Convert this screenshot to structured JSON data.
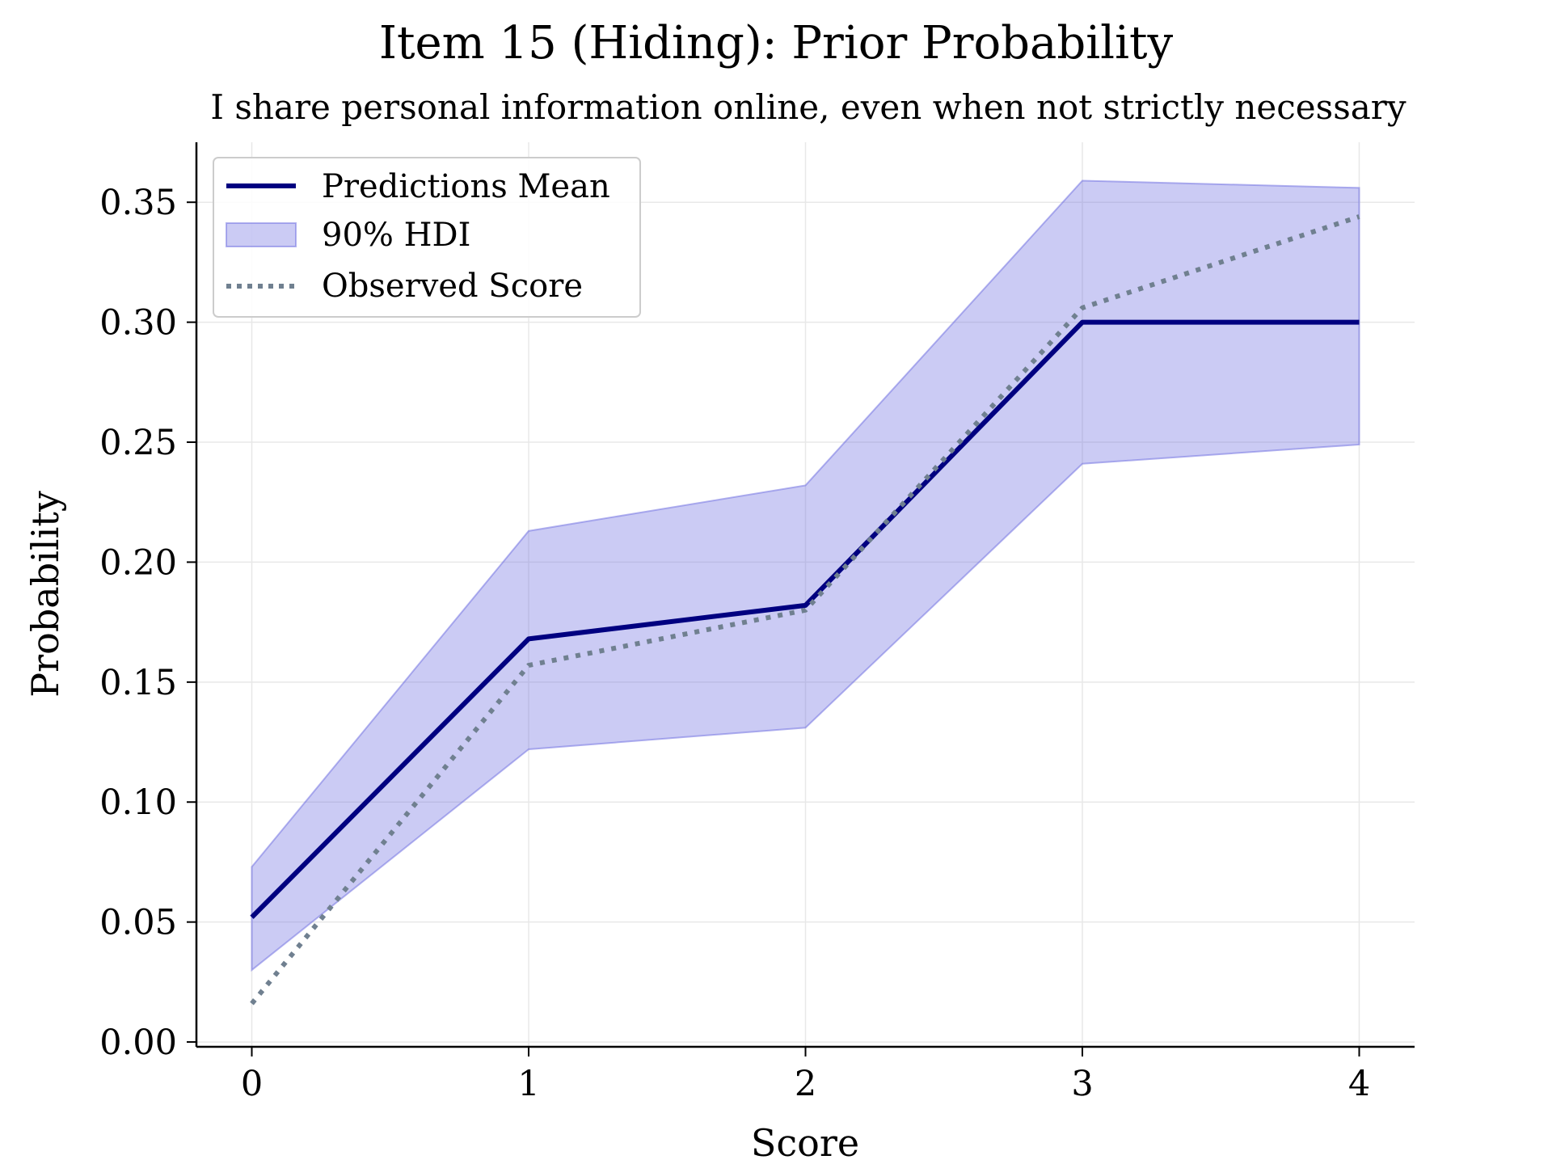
{
  "chart_data": {
    "type": "line",
    "title": "Item 15 (Hiding): Prior Probability",
    "subtitle": "I share personal information online, even when not strictly necessary",
    "xlabel": "Score",
    "ylabel": "Probability",
    "x": [
      0,
      1,
      2,
      3,
      4
    ],
    "xticks": [
      "0",
      "1",
      "2",
      "3",
      "4"
    ],
    "yticks": [
      "0.00",
      "0.05",
      "0.10",
      "0.15",
      "0.20",
      "0.25",
      "0.30",
      "0.35"
    ],
    "ytick_values": [
      0.0,
      0.05,
      0.1,
      0.15,
      0.2,
      0.25,
      0.3,
      0.35
    ],
    "xlim": [
      -0.2,
      4.2
    ],
    "ylim": [
      -0.002,
      0.375
    ],
    "grid": true,
    "legend_position": "top-left",
    "series": [
      {
        "name": "Predictions Mean",
        "kind": "line",
        "values": [
          0.052,
          0.168,
          0.182,
          0.3,
          0.3
        ],
        "color": "#000080"
      },
      {
        "name": "90% HDI",
        "kind": "band",
        "lower": [
          0.03,
          0.122,
          0.131,
          0.241,
          0.249
        ],
        "upper": [
          0.073,
          0.213,
          0.232,
          0.359,
          0.356
        ],
        "color": "#6a6ae0"
      },
      {
        "name": "Observed Score",
        "kind": "dotted",
        "values": [
          0.016,
          0.157,
          0.18,
          0.306,
          0.344
        ],
        "color": "#708090"
      }
    ]
  }
}
